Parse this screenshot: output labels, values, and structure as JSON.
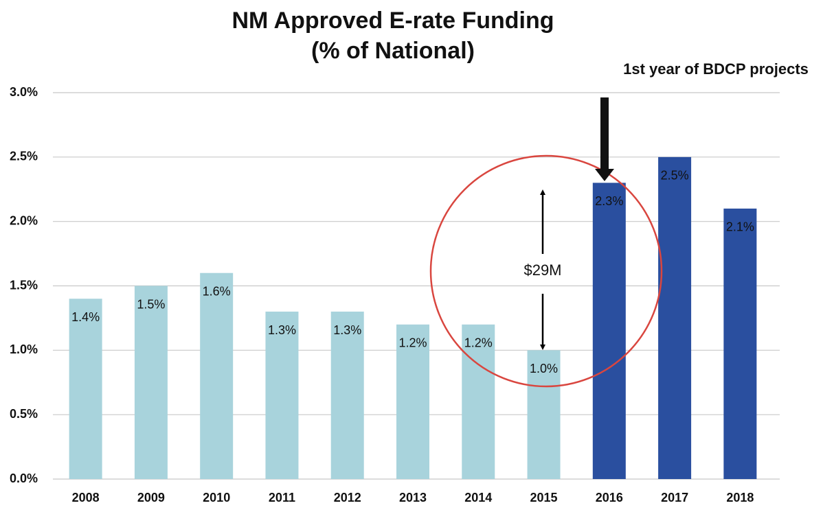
{
  "chart_data": {
    "type": "bar",
    "title": "NM Approved E-rate Funding",
    "subtitle": "(% of National)",
    "categories": [
      "2008",
      "2009",
      "2010",
      "2011",
      "2012",
      "2013",
      "2014",
      "2015",
      "2016",
      "2017",
      "2018"
    ],
    "values": [
      1.4,
      1.5,
      1.6,
      1.3,
      1.3,
      1.2,
      1.2,
      1.0,
      2.3,
      2.5,
      2.1
    ],
    "value_labels": [
      "1.4%",
      "1.5%",
      "1.6%",
      "1.3%",
      "1.3%",
      "1.2%",
      "1.2%",
      "1.0%",
      "2.3%",
      "2.5%",
      "2.1%"
    ],
    "colors": [
      "#a8d3dc",
      "#a8d3dc",
      "#a8d3dc",
      "#a8d3dc",
      "#a8d3dc",
      "#a8d3dc",
      "#a8d3dc",
      "#a8d3dc",
      "#2a4f9f",
      "#2a4f9f",
      "#2a4f9f"
    ],
    "ylim": [
      0,
      3
    ],
    "yticks": [
      {
        "value": 0,
        "label": "0.0%"
      },
      {
        "value": 0.5,
        "label": "0.5%"
      },
      {
        "value": 1,
        "label": "1.0%"
      },
      {
        "value": 1.5,
        "label": "1.5%"
      },
      {
        "value": 2,
        "label": "2.0%"
      },
      {
        "value": 2.5,
        "label": "2.5%"
      },
      {
        "value": 3,
        "label": "3.0%"
      }
    ],
    "grid": true,
    "annotations": [
      "1st year of BDCP projects",
      "$29M"
    ]
  }
}
